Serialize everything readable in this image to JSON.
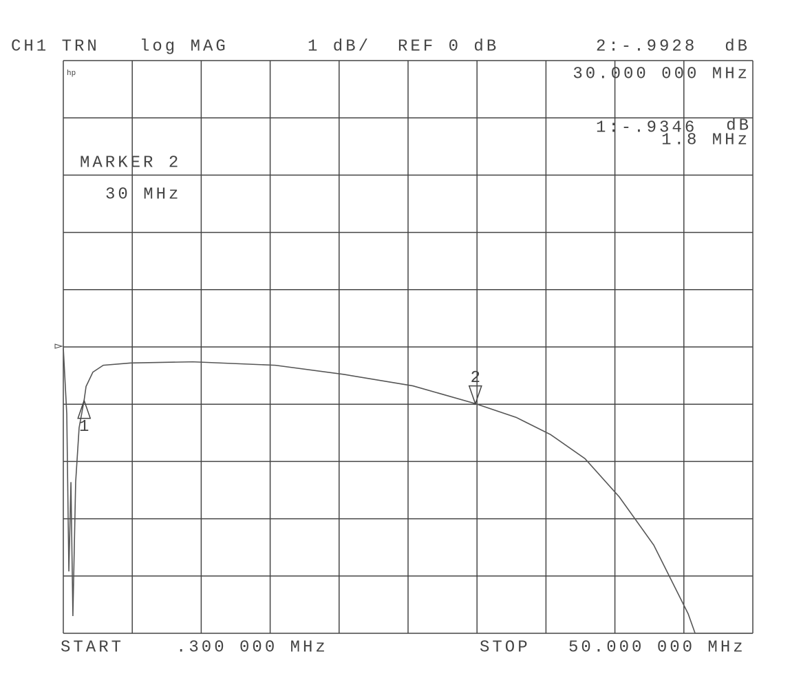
{
  "chart_data": {
    "type": "line",
    "header": [
      "CH1 TRN",
      "log MAG",
      "1 dB/",
      "REF 0 dB"
    ],
    "logo": "hp",
    "annotations": [
      "MARKER 2",
      "30 MHz"
    ],
    "start_label": "START",
    "start_value": ".300 000 MHz",
    "stop_label": "STOP",
    "stop_value": "50.000 000 MHz",
    "xlim": [
      0.3,
      50
    ],
    "ylim": [
      -5,
      5
    ],
    "xticks": [
      0.3,
      5.27,
      10.24,
      15.21,
      20.18,
      25.15,
      30.12,
      35.09,
      40.06,
      45.03,
      50
    ],
    "yticks": [
      -5,
      -4,
      -3,
      -2,
      -1,
      0,
      1,
      2,
      3,
      4,
      5
    ],
    "grid": true,
    "series": [
      {
        "color": "#555555",
        "x": [
          0.3,
          0.55,
          0.7,
          0.85,
          0.99,
          1.19,
          1.44,
          1.8,
          1.94,
          2.43,
          3.18,
          5.16,
          9.63,
          15.58,
          20.54,
          25.5,
          30,
          32.94,
          35.42,
          37.9,
          40.38,
          42.86,
          45.34,
          45.84,
          50
        ],
        "values": [
          -0.02,
          -1.17,
          -3.92,
          -2.36,
          -4.7,
          -2.36,
          -1.41,
          -0.93,
          -0.69,
          -0.44,
          -0.32,
          -0.28,
          -0.26,
          -0.32,
          -0.48,
          -0.68,
          -0.99,
          -1.23,
          -1.53,
          -1.95,
          -2.62,
          -3.46,
          -4.66,
          -5,
          -5
        ]
      }
    ],
    "markers": [
      {
        "label": "1",
        "x": 1.8,
        "value": -0.9346,
        "readout": "1:-.9346",
        "unit": "dB",
        "freq": "1.8 MHz"
      },
      {
        "label": "2",
        "x": 30,
        "value": -0.9928,
        "readout": "2:-.9928",
        "unit": "dB",
        "freq": "30.000 000 MHz"
      }
    ]
  }
}
